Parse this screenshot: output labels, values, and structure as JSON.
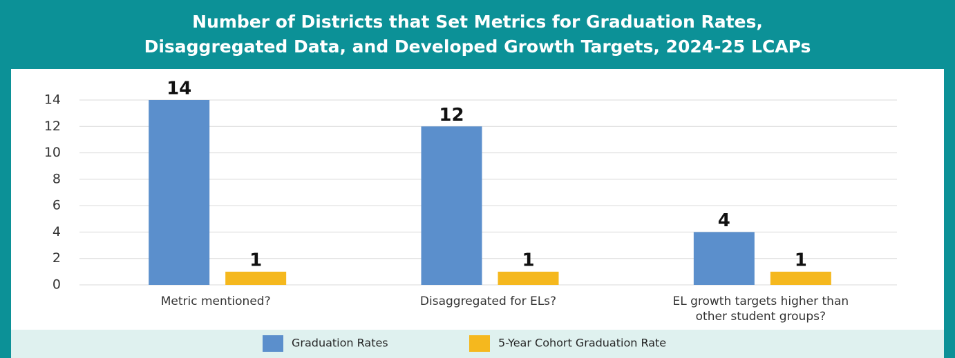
{
  "chart_data": {
    "type": "bar",
    "title": "Number of Districts that Set Metrics for Graduation Rates,\nDisaggregated Data, and Developed Growth Targets, 2024-25 LCAPs",
    "categories": [
      "Metric mentioned?",
      "Disaggregated for ELs?",
      "EL growth targets higher than\nother student groups?"
    ],
    "series": [
      {
        "name": "Graduation Rates",
        "color": "#5b8fcc",
        "values": [
          14,
          12,
          4
        ]
      },
      {
        "name": "5-Year Cohort Graduation Rate",
        "color": "#f5b81e",
        "values": [
          1,
          1,
          1
        ]
      }
    ],
    "ylim": [
      0,
      14
    ],
    "yticks": [
      0,
      2,
      4,
      6,
      8,
      10,
      12,
      14
    ],
    "grid": true,
    "legend": "bottom"
  }
}
